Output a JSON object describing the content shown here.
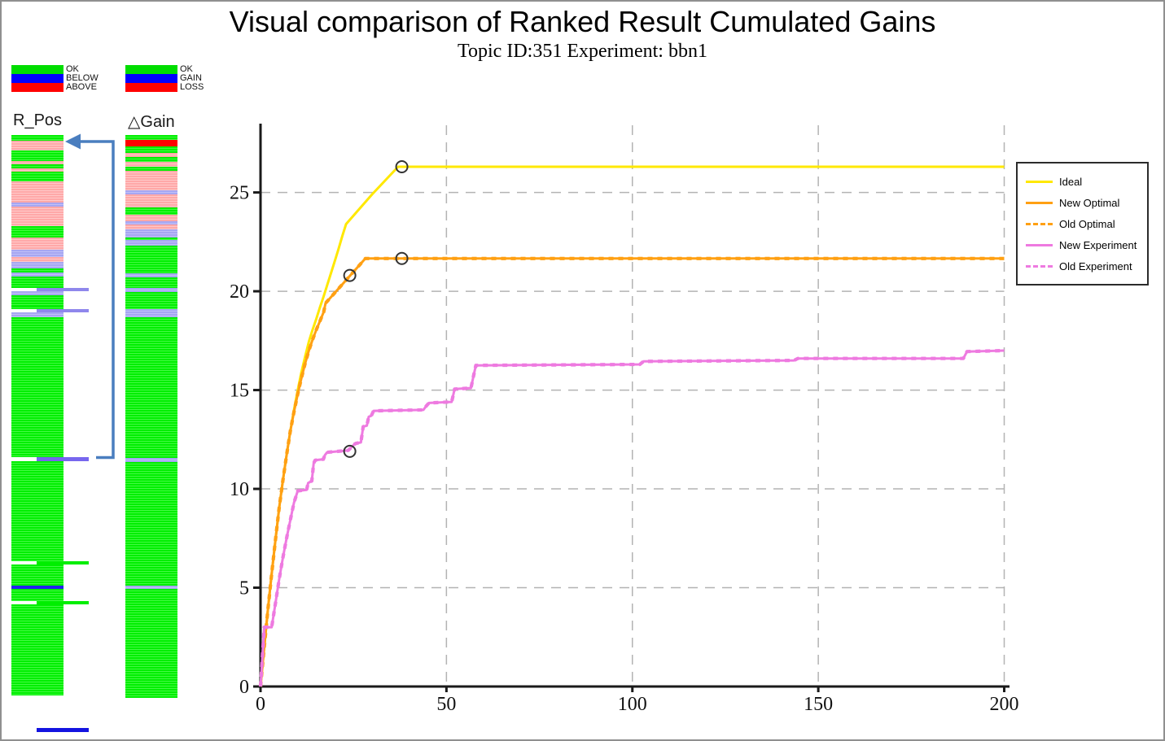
{
  "page": {
    "title": "Visual comparison of Ranked Result Cumulated Gains",
    "subtitle": "Topic ID:351 Experiment: bbn1"
  },
  "left_panel": {
    "palette": {
      "g": "#00EE00",
      "g_lt": "#44FA44",
      "p": "#FFA8A8",
      "p_lt": "#FFC9C9",
      "l": "#A6A6F2",
      "l_lt": "#C0C0F8",
      "r": "#FF0000",
      "b": "#2323EE",
      "line_lavender": "#8F87EC",
      "line_green": "#00EE00",
      "line_violet": "#7766EE",
      "footer_blue": "#1414E0",
      "arrow_blue": "#4A7EBF"
    },
    "legend_rpos": {
      "rows": [
        {
          "color": "#00DD00",
          "label": "OK"
        },
        {
          "color": "#0000FF",
          "label": "BELOW"
        },
        {
          "color": "#FF0000",
          "label": "ABOVE"
        }
      ]
    },
    "legend_dgain": {
      "rows": [
        {
          "color": "#00DD00",
          "label": "OK"
        },
        {
          "color": "#0000FF",
          "label": "GAIN"
        },
        {
          "color": "#FF0000",
          "label": "LOSS"
        }
      ]
    },
    "strip_rpos": {
      "label": "R_Pos",
      "bands": [
        [
          "g",
          7
        ],
        [
          "p",
          12
        ],
        [
          "g",
          13
        ],
        [
          "p",
          4
        ],
        [
          "g",
          5
        ],
        [
          "p",
          4
        ],
        [
          "g",
          12
        ],
        [
          "p",
          26
        ],
        [
          "l",
          5
        ],
        [
          "p",
          24
        ],
        [
          "g",
          14
        ],
        [
          "p",
          15
        ],
        [
          "l",
          9
        ],
        [
          "p",
          6
        ],
        [
          "l",
          8
        ],
        [
          "g",
          5
        ],
        [
          "l",
          5
        ],
        [
          "g",
          14
        ],
        [
          "sl",
          4
        ],
        [
          "l",
          5
        ],
        [
          "g",
          13
        ],
        [
          "g",
          4
        ],
        [
          "sl",
          4
        ],
        [
          "l",
          6
        ],
        [
          "g",
          172
        ],
        [
          "sv",
          5
        ],
        [
          "g",
          123
        ],
        [
          "sg",
          4
        ],
        [
          "g",
          26
        ],
        [
          "b",
          4
        ],
        [
          "g",
          15
        ],
        [
          "sg",
          4
        ],
        [
          "g",
          112
        ]
      ]
    },
    "strip_dgain": {
      "label": "△Gain",
      "bands": [
        [
          "g",
          6
        ],
        [
          "r",
          8
        ],
        [
          "g",
          8
        ],
        [
          "p",
          5
        ],
        [
          "g",
          6
        ],
        [
          "p",
          6
        ],
        [
          "g",
          5
        ],
        [
          "p",
          24
        ],
        [
          "l",
          5
        ],
        [
          "p",
          16
        ],
        [
          "g",
          9
        ],
        [
          "p",
          8
        ],
        [
          "l",
          4
        ],
        [
          "p",
          6
        ],
        [
          "l",
          10
        ],
        [
          "g",
          3
        ],
        [
          "l",
          7
        ],
        [
          "g",
          34
        ],
        [
          "l",
          5
        ],
        [
          "g",
          13
        ],
        [
          "l",
          5
        ],
        [
          "g",
          21
        ],
        [
          "l",
          10
        ],
        [
          "g",
          173
        ],
        [
          "l",
          5
        ],
        [
          "g",
          152
        ],
        [
          "l",
          4
        ],
        [
          "g",
          134
        ]
      ]
    }
  },
  "chart_data": {
    "type": "line",
    "title": "Visual comparison of Ranked Result Cumulated Gains",
    "subtitle": "Topic ID:351 Experiment: bbn1",
    "xlabel": "",
    "ylabel": "",
    "xlim": [
      0,
      200
    ],
    "ylim": [
      0,
      28.4
    ],
    "xticks": [
      0,
      50,
      100,
      150,
      200
    ],
    "yticks": [
      0,
      5,
      10,
      15,
      20,
      25
    ],
    "grid": "dashed",
    "legend_position": "right",
    "axis_color": "#1a1a1a",
    "grid_color": "#b3b3b3",
    "marker_color": "#333333",
    "series": [
      {
        "name": "Ideal",
        "color": "#FFE800",
        "style": "solid",
        "points": [
          [
            0,
            0
          ],
          [
            1,
            2
          ],
          [
            2,
            3.9
          ],
          [
            3,
            5.7
          ],
          [
            4,
            7.4
          ],
          [
            5,
            9
          ],
          [
            6,
            10.4
          ],
          [
            7,
            11.7
          ],
          [
            8,
            12.9
          ],
          [
            9,
            14
          ],
          [
            10,
            15
          ],
          [
            11,
            15.9
          ],
          [
            12,
            16.7
          ],
          [
            13,
            17.45
          ],
          [
            14,
            18.05
          ],
          [
            15,
            18.6
          ],
          [
            16,
            19.2
          ],
          [
            17,
            19.75
          ],
          [
            18,
            20.35
          ],
          [
            19,
            20.95
          ],
          [
            20,
            21.55
          ],
          [
            21,
            22.15
          ],
          [
            22,
            22.8
          ],
          [
            23,
            23.4
          ],
          [
            30,
            24.9
          ],
          [
            37,
            26.3
          ],
          [
            200,
            26.3
          ]
        ],
        "markers": [
          [
            38,
            26.3
          ]
        ]
      },
      {
        "name": "New Optimal",
        "color": "#FFA013",
        "style": "solid",
        "points": [
          [
            0,
            0
          ],
          [
            1,
            2
          ],
          [
            2,
            3.9
          ],
          [
            3,
            5.7
          ],
          [
            4,
            7.4
          ],
          [
            5,
            9
          ],
          [
            6,
            10.4
          ],
          [
            7,
            11.7
          ],
          [
            8,
            12.9
          ],
          [
            9,
            13.9
          ],
          [
            10,
            14.8
          ],
          [
            11,
            15.6
          ],
          [
            12,
            16.35
          ],
          [
            13,
            17.0
          ],
          [
            14,
            17.55
          ],
          [
            15,
            18.05
          ],
          [
            16,
            18.5
          ],
          [
            17,
            18.95
          ],
          [
            17.5,
            19.4
          ],
          [
            28.2,
            21.66
          ],
          [
            200,
            21.66
          ]
        ],
        "markers": [
          [
            24,
            20.8
          ],
          [
            38,
            21.66
          ]
        ]
      },
      {
        "name": "Old Optimal",
        "color": "#FFA013",
        "style": "dashed",
        "points": [
          [
            0,
            0
          ],
          [
            1,
            2
          ],
          [
            2,
            3.9
          ],
          [
            3,
            5.7
          ],
          [
            4,
            7.4
          ],
          [
            5,
            9
          ],
          [
            6,
            10.4
          ],
          [
            7,
            11.7
          ],
          [
            8,
            12.9
          ],
          [
            9,
            13.9
          ],
          [
            10,
            14.8
          ],
          [
            11,
            15.6
          ],
          [
            12,
            16.35
          ],
          [
            13,
            17.0
          ],
          [
            14,
            17.55
          ],
          [
            15,
            18.05
          ],
          [
            16,
            18.5
          ],
          [
            17,
            18.95
          ],
          [
            17.5,
            19.4
          ],
          [
            28.2,
            21.66
          ],
          [
            200,
            21.66
          ]
        ],
        "markers": []
      },
      {
        "name": "New Experiment",
        "color": "#EE7AE0",
        "style": "solid",
        "points": [
          [
            0,
            0
          ],
          [
            1,
            3
          ],
          [
            3,
            3
          ],
          [
            4,
            4.2
          ],
          [
            5,
            5.4
          ],
          [
            6,
            6.5
          ],
          [
            7,
            7.5
          ],
          [
            8,
            8.4
          ],
          [
            9,
            9.3
          ],
          [
            10,
            9.9
          ],
          [
            12.4,
            9.95
          ],
          [
            12.8,
            10.3
          ],
          [
            13.8,
            10.4
          ],
          [
            14.3,
            11.3
          ],
          [
            14.7,
            11.45
          ],
          [
            16.9,
            11.5
          ],
          [
            17.3,
            11.7
          ],
          [
            17.9,
            11.85
          ],
          [
            23.6,
            11.95
          ],
          [
            25.2,
            12.25
          ],
          [
            25.6,
            12.3
          ],
          [
            27,
            12.35
          ],
          [
            27.6,
            13.15
          ],
          [
            28.6,
            13.2
          ],
          [
            29.1,
            13.65
          ],
          [
            29.8,
            13.7
          ],
          [
            30.4,
            13.95
          ],
          [
            43.8,
            14.0
          ],
          [
            44.6,
            14.2
          ],
          [
            45.3,
            14.35
          ],
          [
            51.4,
            14.4
          ],
          [
            52.2,
            15.05
          ],
          [
            56.6,
            15.1
          ],
          [
            57.2,
            15.65
          ],
          [
            57.9,
            16.25
          ],
          [
            102,
            16.3
          ],
          [
            103,
            16.45
          ],
          [
            143.5,
            16.5
          ],
          [
            144.5,
            16.6
          ],
          [
            189,
            16.6
          ],
          [
            190,
            16.95
          ],
          [
            200,
            17.0
          ]
        ],
        "markers": [
          [
            24,
            11.9
          ]
        ]
      },
      {
        "name": "Old Experiment",
        "color": "#EE7AE0",
        "style": "dashed",
        "points": [
          [
            0,
            0
          ],
          [
            1,
            3
          ],
          [
            3,
            3
          ],
          [
            4,
            4.2
          ],
          [
            5,
            5.4
          ],
          [
            6,
            6.5
          ],
          [
            7,
            7.5
          ],
          [
            8,
            8.4
          ],
          [
            9,
            9.3
          ],
          [
            10,
            9.9
          ],
          [
            12.4,
            9.95
          ],
          [
            12.8,
            10.3
          ],
          [
            13.8,
            10.4
          ],
          [
            14.3,
            11.3
          ],
          [
            14.7,
            11.45
          ],
          [
            16.9,
            11.5
          ],
          [
            17.3,
            11.7
          ],
          [
            17.9,
            11.85
          ],
          [
            23.6,
            11.95
          ],
          [
            25.2,
            12.25
          ],
          [
            25.6,
            12.3
          ],
          [
            27,
            12.35
          ],
          [
            27.6,
            13.15
          ],
          [
            28.6,
            13.2
          ],
          [
            29.1,
            13.65
          ],
          [
            29.8,
            13.7
          ],
          [
            30.4,
            13.95
          ],
          [
            43.8,
            14.0
          ],
          [
            44.6,
            14.2
          ],
          [
            45.3,
            14.35
          ],
          [
            51.4,
            14.4
          ],
          [
            52.2,
            15.05
          ],
          [
            56.6,
            15.1
          ],
          [
            57.2,
            15.65
          ],
          [
            57.9,
            16.25
          ],
          [
            102,
            16.3
          ],
          [
            103,
            16.45
          ],
          [
            143.5,
            16.5
          ],
          [
            144.5,
            16.6
          ],
          [
            189,
            16.6
          ],
          [
            190,
            16.95
          ],
          [
            200,
            17.0
          ]
        ],
        "markers": []
      }
    ]
  }
}
